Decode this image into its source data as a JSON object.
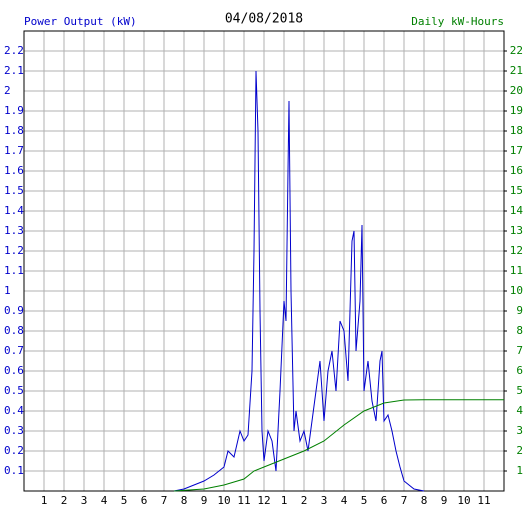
{
  "chart_data": {
    "type": "line",
    "title": "04/08/2018",
    "y_label": "Power Output (kW)",
    "y2_label": "Daily kW-Hours",
    "xlim": [
      0,
      24
    ],
    "xticks": [
      1,
      2,
      3,
      4,
      5,
      6,
      7,
      8,
      9,
      10,
      11,
      12,
      {
        "value": 13,
        "label": "1"
      },
      {
        "value": 14,
        "label": "2"
      },
      {
        "value": 15,
        "label": "3"
      },
      {
        "value": 16,
        "label": "4"
      },
      {
        "value": 17,
        "label": "5"
      },
      {
        "value": 18,
        "label": "6"
      },
      {
        "value": 19,
        "label": "7"
      },
      {
        "value": 20,
        "label": "8"
      },
      {
        "value": 21,
        "label": "9"
      },
      {
        "value": 22,
        "label": "10"
      },
      {
        "value": 23,
        "label": "11"
      }
    ],
    "ylim": [
      0,
      2.3
    ],
    "yticks": [
      0.1,
      0.2,
      0.3,
      0.4,
      0.5,
      0.6,
      0.7,
      0.8,
      0.9,
      1.0,
      1.1,
      1.2,
      1.3,
      1.4,
      1.5,
      1.6,
      1.7,
      1.8,
      1.9,
      2.0,
      2.1,
      2.2
    ],
    "y2lim": [
      0,
      23
    ],
    "y2ticks": [
      1,
      2,
      3,
      4,
      5,
      6,
      7,
      8,
      9,
      10,
      11,
      12,
      13,
      14,
      15,
      16,
      17,
      18,
      19,
      20,
      21,
      22
    ],
    "y_color": "#0000cc",
    "y2_color": "#008000",
    "grid": true,
    "series": [
      {
        "name": "Power Output",
        "color": "#0000cc",
        "x": [
          7.5,
          8.0,
          8.5,
          9.0,
          9.5,
          10.0,
          10.2,
          10.5,
          10.8,
          11.0,
          11.2,
          11.4,
          11.5,
          11.6,
          11.7,
          11.8,
          11.9,
          12.0,
          12.2,
          12.4,
          12.6,
          12.8,
          13.0,
          13.1,
          13.2,
          13.25,
          13.35,
          13.5,
          13.6,
          13.8,
          14.0,
          14.2,
          14.4,
          14.6,
          14.8,
          15.0,
          15.2,
          15.4,
          15.6,
          15.8,
          16.0,
          16.2,
          16.4,
          16.5,
          16.6,
          16.8,
          16.9,
          17.0,
          17.2,
          17.4,
          17.6,
          17.8,
          17.9,
          18.0,
          18.2,
          18.4,
          18.6,
          18.8,
          19.0,
          19.5,
          20.0
        ],
        "values": [
          0,
          0.01,
          0.03,
          0.05,
          0.08,
          0.12,
          0.2,
          0.17,
          0.3,
          0.25,
          0.28,
          0.6,
          1.2,
          2.1,
          1.8,
          0.9,
          0.3,
          0.15,
          0.3,
          0.25,
          0.1,
          0.5,
          0.95,
          0.85,
          1.6,
          1.95,
          1.0,
          0.3,
          0.4,
          0.25,
          0.3,
          0.2,
          0.35,
          0.5,
          0.65,
          0.35,
          0.6,
          0.7,
          0.5,
          0.85,
          0.8,
          0.55,
          1.25,
          1.3,
          0.7,
          0.95,
          1.33,
          0.5,
          0.65,
          0.45,
          0.35,
          0.65,
          0.7,
          0.35,
          0.38,
          0.3,
          0.2,
          0.12,
          0.05,
          0.01,
          0
        ]
      },
      {
        "name": "Daily kW-Hours",
        "color": "#008000",
        "axis": "y2",
        "x": [
          7.5,
          9,
          10,
          11,
          11.5,
          12,
          13,
          14,
          15,
          16,
          17,
          18,
          19,
          20,
          24
        ],
        "values": [
          0,
          0.1,
          0.3,
          0.6,
          1.0,
          1.2,
          1.6,
          2.0,
          2.5,
          3.3,
          4.0,
          4.4,
          4.55,
          4.56,
          4.56
        ]
      }
    ]
  }
}
